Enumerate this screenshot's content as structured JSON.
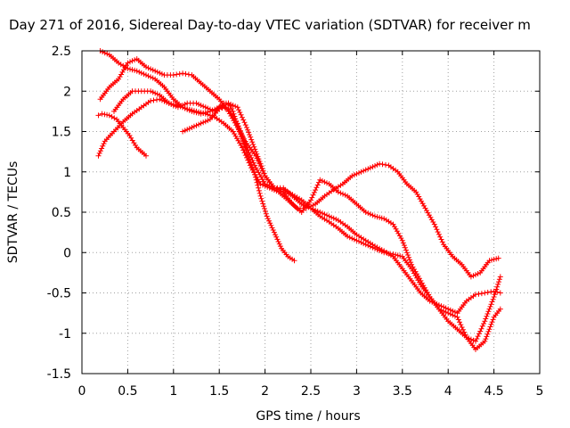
{
  "chart_data": {
    "type": "scatter",
    "title": "Day 271 of 2016, Sidereal Day-to-day VTEC variation (SDTVAR) for receiver m",
    "xlabel": "GPS time / hours",
    "ylabel": "SDTVAR / TECUs",
    "xlim": [
      0,
      5
    ],
    "ylim": [
      -1.5,
      2.5
    ],
    "xticks": [
      "0",
      "0.5",
      "1",
      "1.5",
      "2",
      "2.5",
      "3",
      "3.5",
      "4",
      "4.5",
      "5"
    ],
    "yticks": [
      "2.5",
      "2",
      "1.5",
      "1",
      "0.5",
      "0",
      "-0.5",
      "-1",
      "-1.5"
    ],
    "grid": true,
    "marker": "+",
    "color": "#ff0000",
    "series": [
      {
        "x": [
          0.18,
          0.22,
          0.3,
          0.38,
          0.45,
          0.52,
          0.6,
          0.7
        ],
        "y": [
          1.7,
          1.72,
          1.7,
          1.65,
          1.55,
          1.45,
          1.3,
          1.2
        ]
      },
      {
        "x": [
          0.18,
          0.25,
          0.35,
          0.45,
          0.55,
          0.65,
          0.75,
          0.85,
          0.95,
          1.05,
          1.15,
          1.25,
          1.35,
          1.45,
          1.55,
          1.6,
          1.65,
          1.72,
          1.8,
          1.88,
          1.95,
          2.02,
          2.1,
          2.18,
          2.25,
          2.32
        ],
        "y": [
          1.2,
          1.38,
          1.5,
          1.62,
          1.72,
          1.8,
          1.88,
          1.9,
          1.85,
          1.8,
          1.85,
          1.85,
          1.8,
          1.75,
          1.85,
          1.85,
          1.75,
          1.5,
          1.25,
          1.0,
          0.7,
          0.45,
          0.25,
          0.05,
          -0.05,
          -0.1
        ]
      },
      {
        "x": [
          0.2,
          0.3,
          0.4,
          0.5,
          0.6,
          0.7,
          0.8,
          0.9,
          1.0,
          1.1,
          1.2,
          1.3,
          1.4,
          1.5,
          1.6,
          1.7,
          1.8,
          1.9,
          2.0,
          2.1,
          2.2,
          2.3,
          2.4,
          2.5,
          2.6,
          2.7,
          2.8,
          2.9,
          3.0,
          3.1,
          3.2,
          3.3,
          3.4,
          3.5,
          3.6,
          3.7,
          3.8,
          3.9,
          4.0,
          4.1,
          4.2,
          4.3,
          4.4,
          4.5,
          4.57
        ],
        "y": [
          2.5,
          2.45,
          2.35,
          2.28,
          2.25,
          2.2,
          2.15,
          2.05,
          1.9,
          1.8,
          1.75,
          1.72,
          1.75,
          1.8,
          1.78,
          1.6,
          1.3,
          1.05,
          0.85,
          0.8,
          0.8,
          0.7,
          0.6,
          0.55,
          0.45,
          0.38,
          0.3,
          0.2,
          0.15,
          0.1,
          0.05,
          0.0,
          -0.02,
          -0.05,
          -0.2,
          -0.4,
          -0.55,
          -0.7,
          -0.85,
          -0.95,
          -1.05,
          -1.2,
          -1.1,
          -0.8,
          -0.7
        ]
      },
      {
        "x": [
          0.2,
          0.3,
          0.4,
          0.5,
          0.6,
          0.7,
          0.8,
          0.9,
          1.0,
          1.1,
          1.2,
          1.3,
          1.4,
          1.5,
          1.6,
          1.7,
          1.8,
          1.9,
          2.0,
          2.1,
          2.2,
          2.3,
          2.4,
          2.5,
          2.6,
          2.7,
          2.8,
          2.9,
          3.0,
          3.1,
          3.2,
          3.3,
          3.4,
          3.5,
          3.6,
          3.7,
          3.8,
          3.9,
          4.0,
          4.1,
          4.2,
          4.3,
          4.4,
          4.5,
          4.57
        ],
        "y": [
          1.9,
          2.05,
          2.15,
          2.35,
          2.4,
          2.3,
          2.25,
          2.2,
          2.2,
          2.22,
          2.2,
          2.1,
          2.0,
          1.9,
          1.75,
          1.55,
          1.35,
          1.2,
          0.95,
          0.8,
          0.78,
          0.72,
          0.65,
          0.55,
          0.5,
          0.45,
          0.4,
          0.32,
          0.22,
          0.15,
          0.08,
          0.02,
          -0.05,
          -0.2,
          -0.35,
          -0.5,
          -0.6,
          -0.65,
          -0.7,
          -0.75,
          -0.6,
          -0.52,
          -0.5,
          -0.48,
          -0.5
        ]
      },
      {
        "x": [
          0.35,
          0.45,
          0.55,
          0.65,
          0.75,
          0.85,
          0.95,
          1.05,
          1.15,
          1.25,
          1.35,
          1.45,
          1.55,
          1.65,
          1.75,
          1.85,
          1.95,
          2.05,
          2.15,
          2.25,
          2.35,
          2.45,
          2.55,
          2.65,
          2.75,
          2.85,
          2.95,
          3.05,
          3.15,
          3.25,
          3.35,
          3.45,
          3.55,
          3.65,
          3.75,
          3.85,
          3.95,
          4.05,
          4.15,
          4.25,
          4.35,
          4.45,
          4.55
        ],
        "y": [
          1.75,
          1.9,
          2.0,
          2.0,
          2.0,
          1.95,
          1.85,
          1.82,
          1.78,
          1.75,
          1.72,
          1.68,
          1.6,
          1.5,
          1.3,
          1.05,
          0.85,
          0.8,
          0.75,
          0.65,
          0.55,
          0.55,
          0.6,
          0.7,
          0.78,
          0.85,
          0.95,
          1.0,
          1.05,
          1.1,
          1.08,
          1.0,
          0.85,
          0.75,
          0.55,
          0.35,
          0.1,
          -0.05,
          -0.15,
          -0.3,
          -0.25,
          -0.1,
          -0.07
        ]
      },
      {
        "x": [
          1.1,
          1.2,
          1.3,
          1.4,
          1.5,
          1.6,
          1.7,
          1.8,
          1.9,
          2.0,
          2.1,
          2.2,
          2.3,
          2.4,
          2.5,
          2.6,
          2.7,
          2.8,
          2.9,
          3.0,
          3.1,
          3.2,
          3.3,
          3.4,
          3.5,
          3.6,
          3.7,
          3.8,
          3.9,
          4.0,
          4.1,
          4.2,
          4.3,
          4.4,
          4.5,
          4.57
        ],
        "y": [
          1.5,
          1.55,
          1.6,
          1.65,
          1.78,
          1.85,
          1.8,
          1.55,
          1.25,
          0.95,
          0.8,
          0.75,
          0.6,
          0.5,
          0.65,
          0.9,
          0.85,
          0.75,
          0.7,
          0.6,
          0.5,
          0.45,
          0.42,
          0.35,
          0.15,
          -0.15,
          -0.35,
          -0.55,
          -0.7,
          -0.75,
          -0.8,
          -1.05,
          -1.1,
          -0.85,
          -0.55,
          -0.3
        ]
      }
    ]
  }
}
